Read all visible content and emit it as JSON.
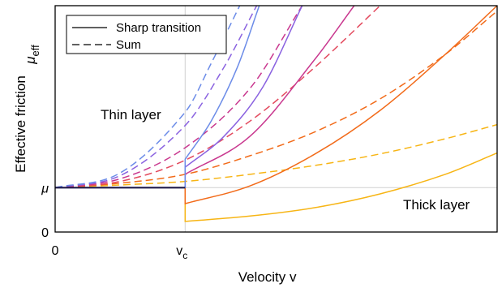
{
  "chart_data": {
    "type": "line",
    "xlabel": "Velocity v",
    "ylabel": "Effective friction",
    "ylabel_symbol": "μ",
    "ylabel_subscript": "eff",
    "x_ticks": [
      {
        "value": 0,
        "label": "0"
      },
      {
        "value": 1,
        "label": "v",
        "subscript": "c"
      }
    ],
    "y_ticks": [
      {
        "value": 0,
        "label": "0"
      },
      {
        "value": 1,
        "label": "μ"
      }
    ],
    "xlim": [
      0,
      3.4
    ],
    "ylim": [
      0,
      5.1
    ],
    "grid": "reference lines at v = v_c and μ_eff = μ",
    "legend": {
      "position": "top-left",
      "entries": [
        {
          "label": "Sharp transition",
          "linestyle": "solid"
        },
        {
          "label": "Sum",
          "linestyle": "dashed"
        }
      ]
    },
    "annotations": [
      {
        "text": "Thin layer",
        "color": "#6f8fe9"
      },
      {
        "text": "Thick layer",
        "color": "#f2ac10"
      }
    ],
    "colors": [
      "#f7b515",
      "#f26b1a",
      "#e34a5e",
      "#c9388f",
      "#8a62e0",
      "#6c8ce8"
    ],
    "series": [
      {
        "style": "dashed",
        "color": "#f7b515",
        "x": [
          0,
          0.5,
          1.0,
          1.5,
          2.0,
          2.5,
          3.0,
          3.4
        ],
        "y": [
          1,
          1.06,
          1.14,
          1.3,
          1.5,
          1.76,
          2.1,
          2.42
        ]
      },
      {
        "style": "dashed",
        "color": "#f26b1a",
        "x": [
          0,
          0.5,
          1.0,
          1.5,
          2.0,
          2.5,
          3.0,
          3.4
        ],
        "y": [
          1,
          1.1,
          1.3,
          1.72,
          2.26,
          3.0,
          4.0,
          4.98
        ]
      },
      {
        "style": "dashed",
        "color": "#e34a5e",
        "x": [
          0,
          0.5,
          1.0,
          1.5,
          2.0,
          2.5
        ],
        "y": [
          1,
          1.14,
          1.62,
          2.5,
          3.72,
          5.1
        ]
      },
      {
        "style": "dashed",
        "color": "#c9388f",
        "x": [
          0,
          0.5,
          1.0,
          1.5,
          1.9
        ],
        "y": [
          1,
          1.2,
          1.9,
          3.24,
          5.1
        ]
      },
      {
        "style": "dashed",
        "color": "#8a62e0",
        "x": [
          0,
          0.5,
          1.0,
          1.3,
          1.55
        ],
        "y": [
          1,
          1.27,
          2.4,
          3.72,
          5.1
        ]
      },
      {
        "style": "dashed",
        "color": "#6c8ce8",
        "x": [
          0,
          0.5,
          1.0,
          1.2,
          1.42
        ],
        "y": [
          1,
          1.33,
          2.7,
          3.8,
          5.1
        ]
      },
      {
        "style": "solid",
        "color": "#f7b515",
        "x": [
          0,
          1.0,
          1.0,
          1.5,
          2.0,
          2.5,
          3.0,
          3.4
        ],
        "y": [
          1,
          1,
          0.24,
          0.36,
          0.55,
          0.86,
          1.3,
          1.78
        ]
      },
      {
        "style": "solid",
        "color": "#f26b1a",
        "x": [
          0,
          1.0,
          1.0,
          1.5,
          2.0,
          2.5,
          3.0,
          3.4
        ],
        "y": [
          1,
          1,
          0.64,
          1.04,
          1.76,
          2.74,
          4.0,
          5.1
        ]
      },
      {
        "style": "solid",
        "color": "#c9388f",
        "x": [
          0,
          1.0,
          1.0,
          1.5,
          2.0,
          2.3
        ],
        "y": [
          1,
          1,
          1.3,
          2.16,
          3.9,
          5.1
        ]
      },
      {
        "style": "solid",
        "color": "#8a62e0",
        "x": [
          0,
          1.0,
          1.0,
          1.3,
          1.6,
          1.9
        ],
        "y": [
          1,
          1,
          1.46,
          2.16,
          3.28,
          5.1
        ]
      },
      {
        "style": "solid",
        "color": "#6c8ce8",
        "x": [
          0,
          1.0,
          1.0,
          1.2,
          1.4,
          1.57
        ],
        "y": [
          1,
          1,
          1.64,
          2.5,
          3.7,
          5.1
        ]
      },
      {
        "style": "solid",
        "color": "#1e1a4a",
        "x": [
          0,
          1.0
        ],
        "y": [
          1,
          1
        ]
      }
    ]
  }
}
